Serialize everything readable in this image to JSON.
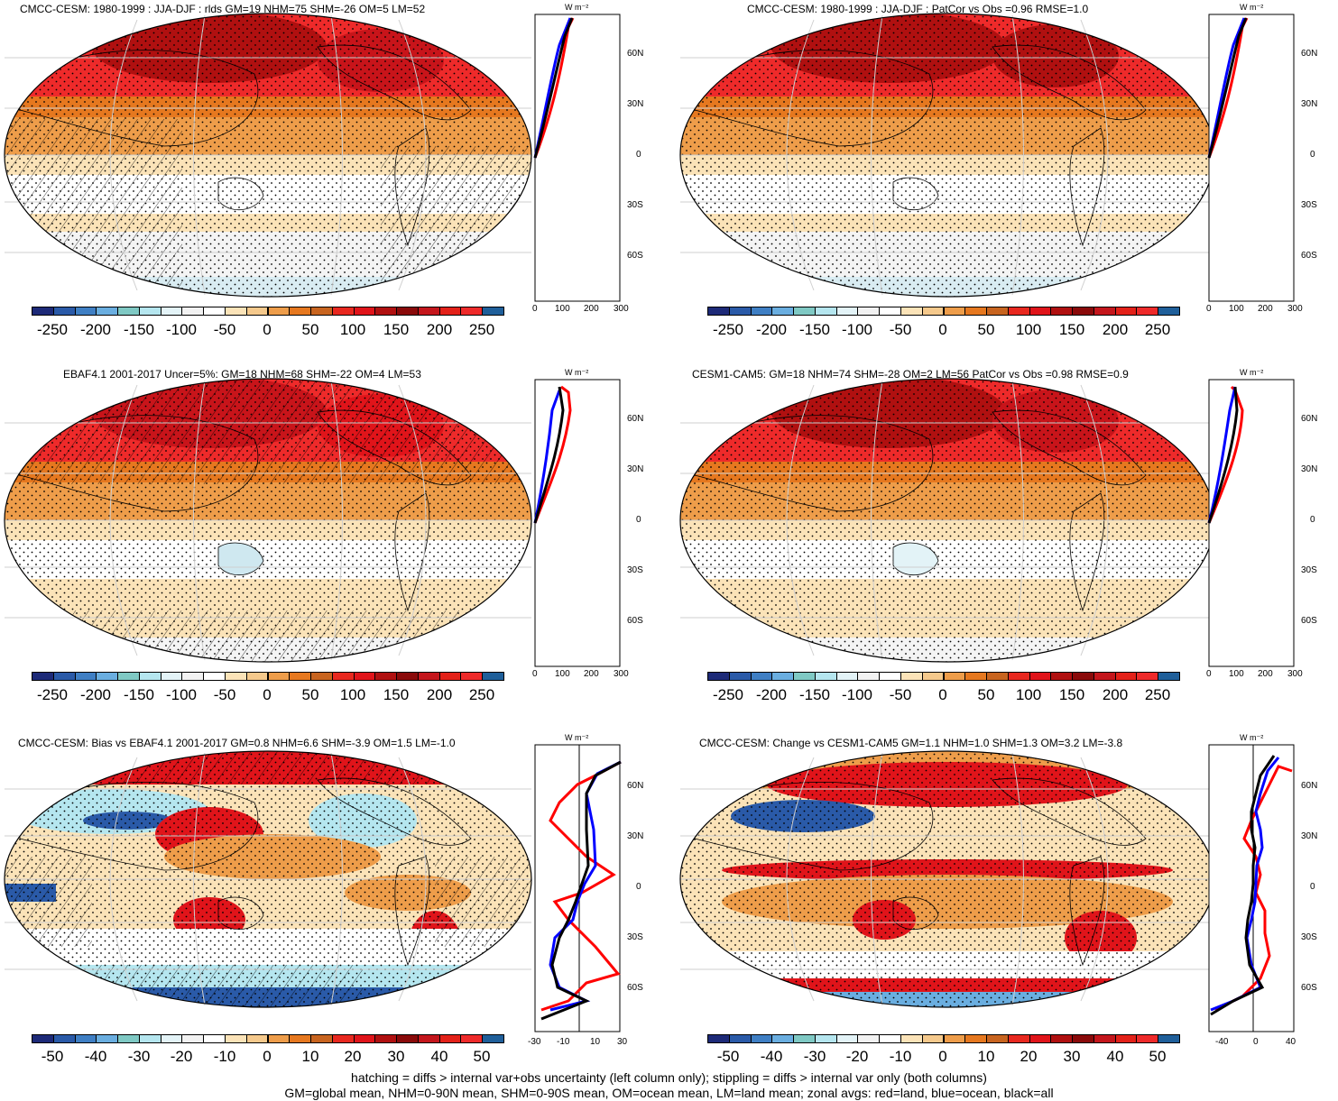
{
  "panels": [
    {
      "title": "CMCC-CESM: 1980-1999 : JJA-DJF : rlds GM=19 NHM=75 SHM=-26 OM=5 LM=52"
    },
    {
      "title": "CMCC-CESM: 1980-1999 : JJA-DJF : PatCor vs Obs =0.96 RMSE=1.0"
    },
    {
      "title": "EBAF4.1 2001-2017 Uncer=5%: GM=18 NHM=68 SHM=-22 OM=4 LM=53"
    },
    {
      "title": "CESM1-CAM5: GM=18 NHM=74 SHM=-28 OM=2 LM=56 PatCor vs Obs =0.98 RMSE=0.9"
    },
    {
      "title": "CMCC-CESM: Bias vs EBAF4.1 2001-2017 GM=0.8 NHM=6.6 SHM=-3.9 OM=1.5 LM=-1.0"
    },
    {
      "title": "CMCC-CESM: Change vs CESM1-CAM5 GM=1.1 NHM=1.0 SHM=1.3 OM=3.2 LM=-3.8"
    }
  ],
  "colorbar_abs": {
    "labels": [
      "-250",
      "-200",
      "-150",
      "-100",
      "-50",
      "0",
      "50",
      "100",
      "150",
      "200",
      "250"
    ]
  },
  "colorbar_diff": {
    "labels": [
      "-50",
      "-40",
      "-30",
      "-20",
      "-10",
      "0",
      "10",
      "20",
      "30",
      "40",
      "50"
    ]
  },
  "colorbar_colors": [
    "#1d2a78",
    "#2a5aa8",
    "#3f7fc4",
    "#6aaee0",
    "#7fc9c4",
    "#b5e6ef",
    "#e3f3f7",
    "#f2f2f2",
    "#ffffff",
    "#fbe3b8",
    "#f5c98c",
    "#ee9d4a",
    "#e6781f",
    "#c8641f",
    "#e8281f",
    "#e0141a",
    "#b01010",
    "#8a0a0a",
    "#c4161c",
    "#e32119",
    "#ee2a2a",
    "#1f5f9a"
  ],
  "zonal": {
    "unit": "W m⁻²",
    "lat_labels": [
      "60N",
      "30N",
      "0",
      "30S",
      "60S"
    ],
    "xticks_abs": [
      "0",
      "100",
      "200",
      "300"
    ],
    "xticks_bias": [
      "-30",
      "-10",
      "10",
      "30"
    ],
    "xticks_change": [
      "-40",
      "0",
      "40"
    ]
  },
  "footer": {
    "line1": "hatching = diffs > internal var+obs uncertainty (left column only); stippling = diffs > internal var only (both columns)",
    "line2": "GM=global mean, NHM=0-90N mean, SHM=0-90S mean, OM=ocean mean, LM=land mean; zonal avgs: red=land, blue=ocean, black=all"
  },
  "colors": {
    "land": "#ff0000",
    "ocean": "#0000ff",
    "all": "#000000"
  }
}
